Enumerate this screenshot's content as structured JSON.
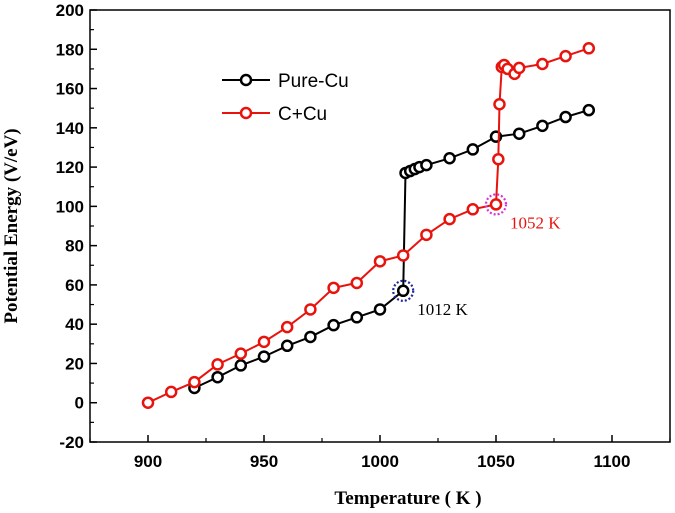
{
  "chart_data": {
    "type": "line",
    "xlabel": "Temperature ( K )",
    "ylabel": "Potential Energy  (V/eV)",
    "xlim": [
      875,
      1125
    ],
    "ylim": [
      -20,
      200
    ],
    "xticks": [
      900,
      950,
      1000,
      1050,
      1100
    ],
    "yticks": [
      -20,
      0,
      20,
      40,
      60,
      80,
      100,
      120,
      140,
      160,
      180,
      200
    ],
    "legend_position": "top-left",
    "series": [
      {
        "name": "Pure-Cu",
        "color": "#000000",
        "x": [
          920,
          930,
          940,
          950,
          960,
          970,
          980,
          990,
          1000,
          1010,
          1011,
          1013,
          1015,
          1017,
          1020,
          1030,
          1040,
          1050,
          1060,
          1070,
          1080,
          1090
        ],
        "y": [
          7.5,
          13,
          19,
          23.5,
          29,
          33.5,
          39.5,
          43.5,
          47.5,
          57,
          117,
          118,
          119,
          120,
          121,
          124.5,
          129,
          135.5,
          137,
          141,
          145.5,
          149
        ]
      },
      {
        "name": "C+Cu",
        "color": "#e8130c",
        "x": [
          900,
          910,
          920,
          930,
          940,
          950,
          960,
          970,
          980,
          990,
          1000,
          1010,
          1020,
          1030,
          1040,
          1050,
          1051,
          1051.5,
          1052.5,
          1053.5,
          1055,
          1058,
          1060,
          1070,
          1080,
          1090
        ],
        "y": [
          0,
          5.5,
          10.5,
          19.5,
          25,
          31,
          38.5,
          47.5,
          58.5,
          61,
          72,
          75,
          85.5,
          93.5,
          98.5,
          101,
          124,
          152,
          171,
          172,
          170,
          167.5,
          170.5,
          172.5,
          176.5,
          180.5
        ]
      }
    ],
    "annotations": [
      {
        "text": "1012 K",
        "x": 1010,
        "y": 57,
        "color": "#000000",
        "marker_color": "#1f2a9a"
      },
      {
        "text": "1052 K",
        "x": 1050,
        "y": 101,
        "color": "#e8130c",
        "marker_color": "#d633d6"
      }
    ]
  }
}
